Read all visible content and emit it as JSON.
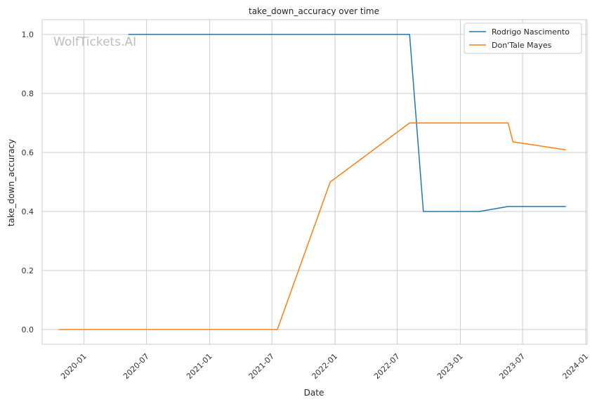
{
  "chart_data": {
    "type": "line",
    "title": "take_down_accuracy over time",
    "xlabel": "Date",
    "ylabel": "take_down_accuracy",
    "watermark": "WolfTickets.AI",
    "xlim": [
      "2019-09-01",
      "2024-01-05"
    ],
    "ylim": [
      -0.05,
      1.05
    ],
    "x_ticks": [
      "2020-01",
      "2020-07",
      "2021-01",
      "2021-07",
      "2022-01",
      "2022-07",
      "2023-01",
      "2023-07",
      "2024-01"
    ],
    "y_ticks": [
      "0.0",
      "0.2",
      "0.4",
      "0.6",
      "0.8",
      "1.0"
    ],
    "grid": true,
    "legend_position": "top-right",
    "series": [
      {
        "name": "Rodrigo Nascimento",
        "color": "#1f77b4",
        "x": [
          "2020-05-09",
          "2022-08-06",
          "2022-09-15",
          "2023-02-25",
          "2023-05-20",
          "2023-11-04"
        ],
        "y": [
          1.0,
          1.0,
          0.4,
          0.4,
          0.417,
          0.417
        ]
      },
      {
        "name": "Don'Tale Mayes",
        "color": "#ff7f0e",
        "x": [
          "2019-10-19",
          "2021-07-17",
          "2021-12-18",
          "2022-08-06",
          "2023-05-20",
          "2023-06-03",
          "2023-11-04"
        ],
        "y": [
          0.0,
          0.0,
          0.5,
          0.7,
          0.7,
          0.636,
          0.609
        ]
      }
    ]
  }
}
